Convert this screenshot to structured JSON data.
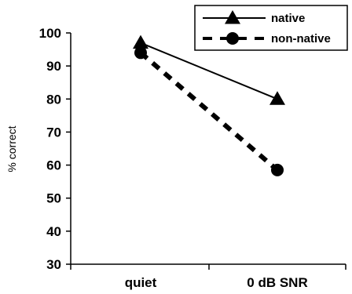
{
  "chart_data": {
    "type": "line",
    "categories": [
      "quiet",
      "0 dB SNR"
    ],
    "series": [
      {
        "name": "native",
        "values": [
          97,
          80
        ],
        "marker": "triangle",
        "line_style": "solid"
      },
      {
        "name": "non-native",
        "values": [
          94,
          58.5
        ],
        "marker": "circle",
        "line_style": "dashed"
      }
    ],
    "xlabel": "",
    "ylabel": "% correct",
    "ylim": [
      30,
      100
    ],
    "yticks": [
      30,
      40,
      50,
      60,
      70,
      80,
      90,
      100
    ],
    "grid": false,
    "legend_position": "top-right",
    "colors": {
      "line": "#000000",
      "background": "#ffffff"
    }
  }
}
